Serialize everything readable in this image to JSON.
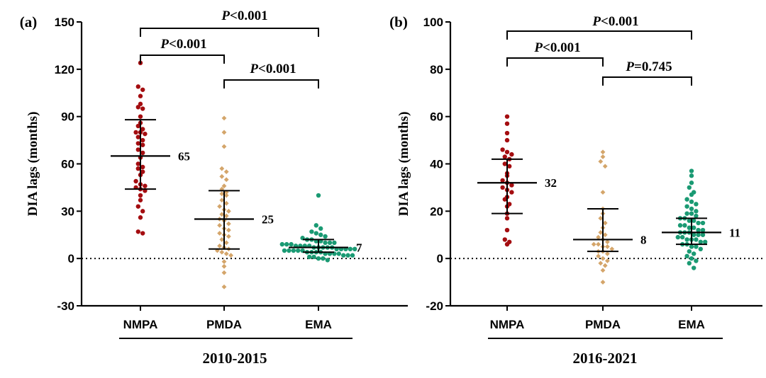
{
  "chart_data": [
    {
      "type": "scatter",
      "panel_label": "(a)",
      "ylabel": "DIA lags (months)",
      "ylim": [
        -30,
        150
      ],
      "yticks": [
        -30,
        0,
        30,
        60,
        90,
        120,
        150
      ],
      "yticklabels": [
        "-30",
        "0",
        "30",
        "60",
        "90",
        "120",
        "150"
      ],
      "reference_line_y": 0,
      "period_label": "2010-2015",
      "categories": [
        "NMPA",
        "PMDA",
        "EMA"
      ],
      "series": [
        {
          "category": "NMPA",
          "color": "#a40d10",
          "marker": "circle",
          "median": 65,
          "median_label": "65",
          "q1": 44,
          "q3": 88,
          "values": [
            124,
            109,
            107,
            103,
            98,
            96,
            95,
            90,
            86,
            84,
            82,
            80,
            80,
            79,
            77,
            75,
            73,
            72,
            69,
            67,
            64,
            60,
            58,
            57,
            55,
            53,
            49,
            47,
            46,
            45,
            44,
            43,
            40,
            37,
            33,
            30,
            26,
            17,
            16
          ]
        },
        {
          "category": "PMDA",
          "color": "#d4a56a",
          "marker": "diamond",
          "median": 25,
          "median_label": "25",
          "q1": 6,
          "q3": 43,
          "values": [
            89,
            80,
            71,
            57,
            55,
            52,
            50,
            46,
            44,
            42,
            41,
            40,
            37,
            35,
            33,
            31,
            30,
            28,
            27,
            25,
            24,
            22,
            21,
            19,
            18,
            16,
            15,
            14,
            12,
            10,
            8,
            7,
            6,
            5,
            4,
            3,
            2,
            -2,
            -5,
            -9,
            -18
          ]
        },
        {
          "category": "EMA",
          "color": "#1a9a73",
          "marker": "circle",
          "median": 7,
          "median_label": "7",
          "q1": 4,
          "q3": 12,
          "values": [
            40,
            21,
            19,
            17,
            16,
            15,
            14,
            13,
            12,
            12,
            11,
            11,
            10,
            10,
            10,
            9,
            9,
            9,
            8,
            8,
            8,
            8,
            7,
            7,
            7,
            7,
            7,
            6,
            6,
            6,
            6,
            6,
            5,
            5,
            5,
            5,
            5,
            4,
            4,
            4,
            4,
            3,
            3,
            3,
            3,
            2,
            2,
            2,
            1,
            1,
            0,
            0,
            -1
          ]
        }
      ],
      "comparisons": [
        {
          "from": "NMPA",
          "to": "EMA",
          "p_symbol": "P",
          "p_text": "<0.001"
        },
        {
          "from": "NMPA",
          "to": "PMDA",
          "p_symbol": "P",
          "p_text": "<0.001"
        },
        {
          "from": "PMDA",
          "to": "EMA",
          "p_symbol": "P",
          "p_text": "<0.001"
        }
      ]
    },
    {
      "type": "scatter",
      "panel_label": "(b)",
      "ylabel": "DIA lags (months)",
      "ylim": [
        -20,
        100
      ],
      "yticks": [
        -20,
        0,
        20,
        40,
        60,
        80,
        100
      ],
      "yticklabels": [
        "-20",
        "0",
        "20",
        "40",
        "60",
        "80",
        "100"
      ],
      "reference_line_y": 0,
      "period_label": "2016-2021",
      "categories": [
        "NMPA",
        "PMDA",
        "EMA"
      ],
      "series": [
        {
          "category": "NMPA",
          "color": "#a40d10",
          "marker": "circle",
          "median": 32,
          "median_label": "32",
          "q1": 19,
          "q3": 42,
          "values": [
            60,
            57,
            53,
            50,
            46,
            45,
            44,
            43,
            42,
            40,
            39,
            36,
            35,
            33,
            32,
            31,
            30,
            29,
            28,
            26,
            25,
            23,
            22,
            19,
            17,
            12,
            8,
            7,
            6
          ]
        },
        {
          "category": "PMDA",
          "color": "#d4a56a",
          "marker": "diamond",
          "median": 8,
          "median_label": "8",
          "q1": 3,
          "q3": 21,
          "values": [
            45,
            43,
            41,
            39,
            28,
            21,
            19,
            17,
            15,
            13,
            11,
            10,
            9,
            8,
            7,
            6,
            6,
            5,
            5,
            4,
            3,
            3,
            2,
            1,
            0,
            -1,
            -2,
            -3,
            -5,
            -10
          ]
        },
        {
          "category": "EMA",
          "color": "#1a9a73",
          "marker": "circle",
          "median": 11,
          "median_label": "11",
          "q1": 6,
          "q3": 17,
          "values": [
            37,
            35,
            32,
            30,
            28,
            27,
            25,
            24,
            23,
            22,
            21,
            20,
            19,
            19,
            18,
            17,
            17,
            16,
            16,
            15,
            15,
            14,
            14,
            13,
            13,
            12,
            12,
            11,
            11,
            11,
            10,
            10,
            10,
            9,
            9,
            8,
            8,
            8,
            7,
            7,
            6,
            6,
            5,
            5,
            4,
            3,
            2,
            1,
            0,
            -1,
            -2,
            -4
          ]
        }
      ],
      "comparisons": [
        {
          "from": "NMPA",
          "to": "EMA",
          "p_symbol": "P",
          "p_text": "<0.001"
        },
        {
          "from": "NMPA",
          "to": "PMDA",
          "p_symbol": "P",
          "p_text": "<0.001"
        },
        {
          "from": "PMDA",
          "to": "EMA",
          "p_symbol": "P",
          "p_text": "=0.745"
        }
      ]
    }
  ]
}
